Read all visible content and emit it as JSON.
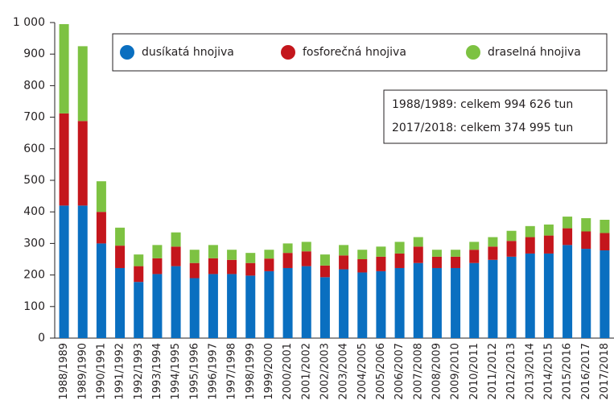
{
  "chart_data": {
    "type": "stacked_bar",
    "categories": [
      "1988/1989",
      "1989/1990",
      "1990/1991",
      "1991/1992",
      "1992/1993",
      "1993/1994",
      "1994/1995",
      "1995/1996",
      "1996/1997",
      "1997/1998",
      "1998/1999",
      "1999/2000",
      "2000/2001",
      "2001/2002",
      "2002/2003",
      "2003/2004",
      "2004/2005",
      "2005/2006",
      "2006/2007",
      "2007/2008",
      "2008/2009",
      "2009/2010",
      "2010/2011",
      "2011/2012",
      "2012/2013",
      "2013/2014",
      "2014/2015",
      "2015/2016",
      "2016/2017",
      "2017/2018"
    ],
    "series": [
      {
        "name": "dusíkatá hnojiva",
        "color": "#0a6fc0",
        "values": [
          420,
          420,
          300,
          222,
          178,
          203,
          228,
          190,
          203,
          203,
          198,
          212,
          222,
          228,
          193,
          218,
          208,
          212,
          222,
          238,
          222,
          222,
          238,
          248,
          258,
          268,
          268,
          295,
          283,
          278
        ]
      },
      {
        "name": "fosforečná hnojiva",
        "color": "#c4161c",
        "values": [
          292,
          268,
          100,
          71,
          50,
          50,
          62,
          48,
          50,
          45,
          40,
          40,
          48,
          47,
          37,
          44,
          42,
          46,
          46,
          52,
          36,
          36,
          42,
          42,
          50,
          52,
          57,
          53,
          55,
          55
        ]
      },
      {
        "name": "draselná hnojiva",
        "color": "#7dc242",
        "values": [
          283,
          237,
          97,
          57,
          37,
          42,
          45,
          42,
          42,
          32,
          32,
          28,
          30,
          30,
          35,
          33,
          30,
          32,
          37,
          30,
          22,
          22,
          25,
          30,
          32,
          35,
          35,
          37,
          42,
          42
        ]
      }
    ],
    "ylim": [
      0,
      1000
    ],
    "yticks": [
      0,
      100,
      200,
      300,
      400,
      500,
      600,
      700,
      800,
      900,
      {
        "value": 1000,
        "label": "1 000"
      }
    ],
    "annotations": [
      "1988/1989: celkem 994 626 tun",
      "2017/2018: celkem 374 995 tun"
    ],
    "legend": "top"
  }
}
